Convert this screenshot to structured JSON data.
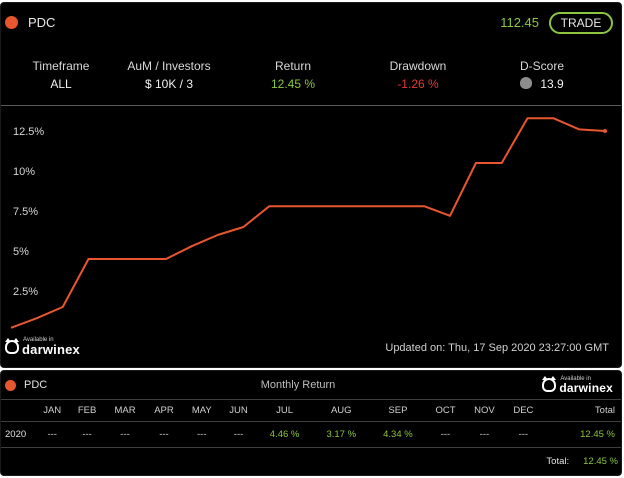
{
  "strategy": {
    "name": "PDC",
    "price": "112.45",
    "trade_label": "TRADE"
  },
  "stats": [
    {
      "label": "Timeframe",
      "value": "ALL"
    },
    {
      "label": "AuM / Investors",
      "value": "$ 10K / 3"
    },
    {
      "label": "Return",
      "value": "12.45 %"
    },
    {
      "label": "Drawdown",
      "value": "-1.26 %"
    },
    {
      "label": "D-Score",
      "value": "13.9"
    }
  ],
  "brand": {
    "small": "Available in",
    "name": "darwinex"
  },
  "updated": "Updated on: Thu, 17 Sep 2020 23:27:00 GMT",
  "chart_data": {
    "type": "line",
    "ylabel": "",
    "yticks": [
      "2.5%",
      "5%",
      "7.5%",
      "10%",
      "12.5%"
    ],
    "ytick_values": [
      2.5,
      5,
      7.5,
      10,
      12.5
    ],
    "ylim": [
      0,
      14
    ],
    "grid": false,
    "series": [
      {
        "color": "#e8562f",
        "x": [
          0,
          1,
          2,
          3,
          4,
          5,
          6,
          7,
          8,
          9,
          10,
          11,
          12,
          13,
          14,
          15,
          16,
          17,
          18,
          19,
          20,
          21,
          22,
          23
        ],
        "y": [
          0.2,
          0.8,
          1.5,
          4.5,
          4.5,
          4.5,
          4.5,
          5.3,
          6.0,
          6.5,
          7.8,
          7.8,
          7.8,
          7.8,
          7.8,
          7.8,
          7.8,
          7.2,
          10.5,
          10.5,
          13.3,
          13.3,
          12.6,
          12.5
        ]
      }
    ]
  },
  "monthly": {
    "title": "Monthly Return",
    "headers": [
      "",
      "JAN",
      "FEB",
      "MAR",
      "APR",
      "MAY",
      "JUN",
      "JUL",
      "AUG",
      "SEP",
      "OCT",
      "NOV",
      "DEC",
      "Total"
    ],
    "rows": [
      {
        "year": "2020",
        "values": [
          "---",
          "---",
          "---",
          "---",
          "---",
          "---",
          "4.46 %",
          "3.17 %",
          "4.34 %",
          "---",
          "---",
          "---"
        ],
        "total": "12.45 %"
      }
    ],
    "total_label": "Total:",
    "total_value": "12.45 %"
  },
  "colors": {
    "accent_green": "#8cc63f",
    "accent_red": "#e53935",
    "line_orange": "#e8562f",
    "background": "#000000"
  }
}
